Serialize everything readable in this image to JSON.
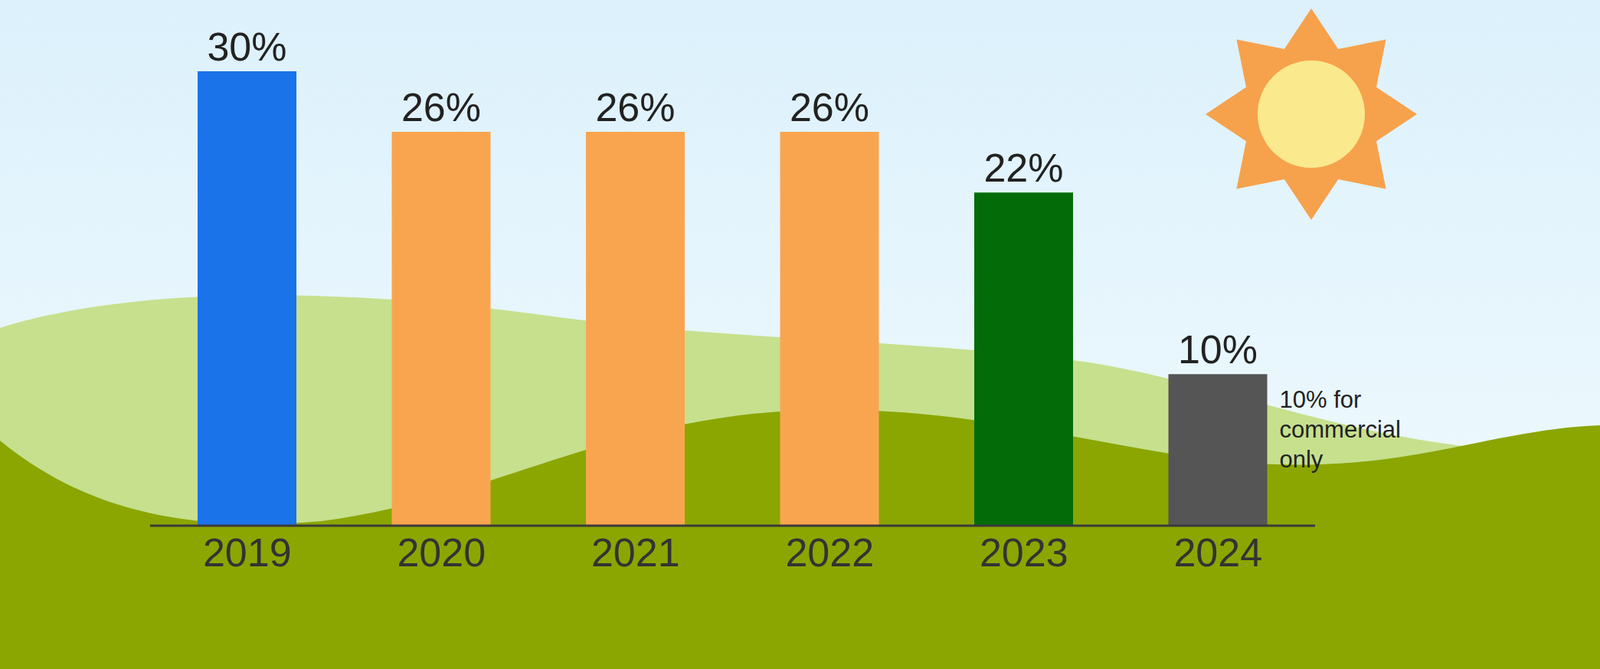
{
  "chart_data": {
    "type": "bar",
    "categories": [
      "2019",
      "2020",
      "2021",
      "2022",
      "2023",
      "2024"
    ],
    "values": [
      30,
      26,
      26,
      26,
      22,
      10
    ],
    "value_labels": [
      "30%",
      "26%",
      "26%",
      "26%",
      "22%",
      "10%"
    ],
    "colors": [
      "#1a73e8",
      "#f9a550",
      "#f9a550",
      "#f9a550",
      "#046b09",
      "#555555"
    ],
    "ylim": [
      0,
      30
    ],
    "data_labels": true,
    "tick_labels": "x",
    "annotations": [
      {
        "category": "2024",
        "text": "10% for commercial only"
      }
    ]
  }
}
